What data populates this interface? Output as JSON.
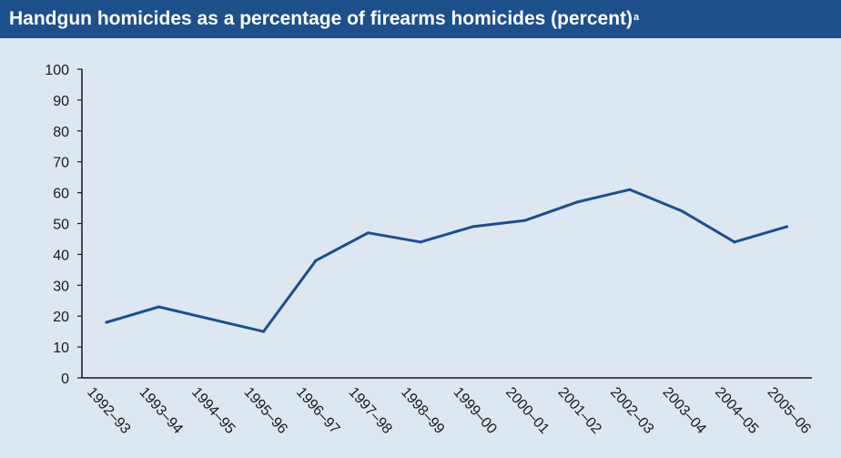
{
  "title": {
    "text": "Handgun homicides as a percentage of firearms homicides (percent)",
    "footnote_marker": "a"
  },
  "colors": {
    "title_bar": "#1d4f8b",
    "plot_background": "#dce7f1",
    "line": "#1d4f8b",
    "axis": "#1a1a1a"
  },
  "chart_data": {
    "type": "line",
    "title": "Handgun homicides as a percentage of firearms homicides (percent)",
    "xlabel": "",
    "ylabel": "",
    "ylim": [
      0,
      100
    ],
    "yticks": [
      0,
      10,
      20,
      30,
      40,
      50,
      60,
      70,
      80,
      90,
      100
    ],
    "grid": false,
    "legend": "none",
    "categories": [
      "1992–93",
      "1993–94",
      "1994–95",
      "1995–96",
      "1996–97",
      "1997–98",
      "1998–99",
      "1999–00",
      "2000–01",
      "2001–02",
      "2002–03",
      "2003–04",
      "2004–05",
      "2005–06"
    ],
    "series": [
      {
        "values": [
          18,
          23,
          19,
          15,
          38,
          47,
          44,
          49,
          51,
          57,
          61,
          54,
          44,
          49
        ]
      }
    ]
  }
}
